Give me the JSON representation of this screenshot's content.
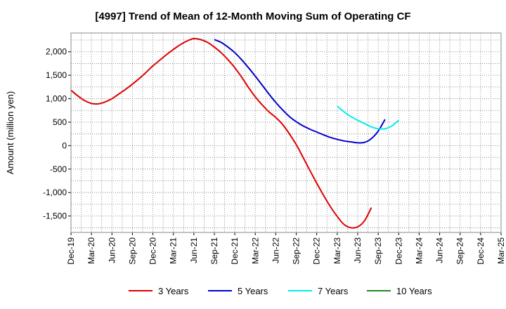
{
  "chart_data": {
    "type": "line",
    "title": "[4997]  Trend of Mean of 12-Month Moving Sum of Operating CF",
    "xlabel": "",
    "ylabel": "Amount (million yen)",
    "ylim": [
      -1850,
      2400
    ],
    "yticks": [
      2000,
      1500,
      1000,
      500,
      0,
      -500,
      -1000,
      -1500
    ],
    "ytick_labels": [
      "2,000",
      "1,500",
      "1,000",
      "500",
      "0",
      "-500",
      "-1,000",
      "-1,500"
    ],
    "xtick_labels": [
      "Dec-19",
      "Mar-20",
      "Jun-20",
      "Sep-20",
      "Dec-20",
      "Mar-21",
      "Jun-21",
      "Sep-21",
      "Dec-21",
      "Mar-22",
      "Jun-22",
      "Sep-22",
      "Dec-22",
      "Mar-23",
      "Jun-23",
      "Sep-23",
      "Dec-23",
      "Mar-24",
      "Jun-24",
      "Sep-24",
      "Dec-24",
      "Mar-25"
    ],
    "grid": true,
    "legend_position": "bottom",
    "series": [
      {
        "name": "3 Years",
        "color": "#dd0000",
        "start_index": 0,
        "values": [
          1180,
          1060,
          960,
          900,
          890,
          930,
          1000,
          1100,
          1200,
          1310,
          1430,
          1560,
          1700,
          1820,
          1940,
          2050,
          2150,
          2230,
          2280,
          2260,
          2200,
          2100,
          1980,
          1830,
          1660,
          1460,
          1240,
          1040,
          870,
          720,
          600,
          450,
          250,
          20,
          -250,
          -530,
          -800,
          -1060,
          -1300,
          -1510,
          -1680,
          -1750,
          -1730,
          -1600,
          -1320
        ]
      },
      {
        "name": "5 Years",
        "color": "#0000cc",
        "start_index": 21,
        "values": [
          2260,
          2200,
          2100,
          1980,
          1830,
          1660,
          1480,
          1290,
          1100,
          920,
          760,
          620,
          510,
          420,
          350,
          290,
          230,
          175,
          135,
          100,
          80,
          60,
          70,
          150,
          310,
          560
        ]
      },
      {
        "name": "7 Years",
        "color": "#00eeee",
        "start_index": 39,
        "values": [
          840,
          720,
          620,
          540,
          470,
          400,
          360,
          360,
          420,
          540
        ]
      },
      {
        "name": "10 Years",
        "color": "#228822",
        "start_index": 0,
        "values": []
      }
    ]
  }
}
